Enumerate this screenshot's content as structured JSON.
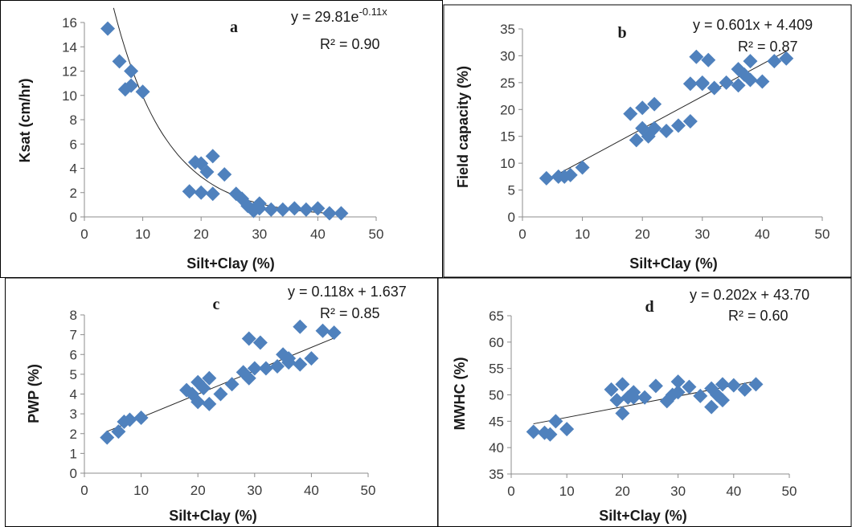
{
  "chart_data": [
    {
      "type": "scatter",
      "panel_label": "a",
      "xlabel": "Silt+Clay (%)",
      "ylabel": "Ksat (cm/hr)",
      "xlim": [
        0,
        50
      ],
      "ylim": [
        0,
        16
      ],
      "xticks": [
        "0",
        "10",
        "20",
        "30",
        "40",
        "50"
      ],
      "yticks": [
        "0",
        "2",
        "4",
        "6",
        "8",
        "10",
        "12",
        "14",
        "16"
      ],
      "equation": "y = 29.81e",
      "equation_exp": "-0.11x",
      "r2": "R² = 0.90",
      "trend": {
        "kind": "exponential",
        "a": 29.81,
        "b": -0.11,
        "x_from": 5,
        "x_to": 44
      },
      "marker_color": "#4f81bd",
      "series": [
        {
          "x": [
            4,
            6,
            7,
            8,
            8,
            10,
            18,
            19,
            20,
            20,
            21,
            22,
            22,
            24,
            26,
            27,
            28,
            29,
            30,
            30,
            32,
            34,
            36,
            38,
            40,
            42,
            44
          ],
          "y": [
            15.5,
            12.8,
            10.5,
            12,
            10.8,
            10.3,
            2.1,
            4.5,
            4.4,
            2,
            3.7,
            5,
            1.9,
            3.5,
            1.9,
            1.5,
            0.9,
            0.5,
            1.1,
            0.7,
            0.6,
            0.6,
            0.7,
            0.6,
            0.7,
            0.3,
            0.3
          ]
        }
      ]
    },
    {
      "type": "scatter",
      "panel_label": "b",
      "xlabel": "Silt+Clay (%)",
      "ylabel": "Field capacity (%)",
      "xlim": [
        0,
        50
      ],
      "ylim": [
        0,
        35
      ],
      "xticks": [
        "0",
        "10",
        "20",
        "30",
        "40",
        "50"
      ],
      "yticks": [
        "0",
        "5",
        "10",
        "15",
        "20",
        "25",
        "30",
        "35"
      ],
      "equation": "y = 0.601x + 4.409",
      "r2": "R² = 0.87",
      "trend": {
        "kind": "linear",
        "m": 0.601,
        "c": 4.409,
        "x_from": 4,
        "x_to": 44
      },
      "marker_color": "#4f81bd",
      "series": [
        {
          "x": [
            4,
            6,
            7,
            8,
            10,
            18,
            19,
            20,
            20,
            21,
            22,
            22,
            24,
            26,
            28,
            28,
            29,
            30,
            30,
            31,
            32,
            34,
            36,
            36,
            37,
            38,
            38,
            40,
            42,
            44
          ],
          "y": [
            7.2,
            7.5,
            7.5,
            7.8,
            9.2,
            19.2,
            14.3,
            20.3,
            16.5,
            15,
            21,
            16.5,
            16,
            17,
            17.8,
            24.8,
            29.8,
            24.8,
            25,
            29.2,
            24,
            25,
            24.5,
            27.5,
            26.5,
            29,
            25.5,
            25.2,
            29,
            29.5
          ]
        }
      ]
    },
    {
      "type": "scatter",
      "panel_label": "c",
      "xlabel": "Silt+Clay (%)",
      "ylabel": "PWP (%)",
      "xlim": [
        0,
        50
      ],
      "ylim": [
        0,
        8
      ],
      "xticks": [
        "0",
        "10",
        "20",
        "30",
        "40",
        "50"
      ],
      "yticks": [
        "0",
        "1",
        "2",
        "3",
        "4",
        "5",
        "6",
        "7",
        "8"
      ],
      "equation": "y = 0.118x + 1.637",
      "r2": "R² = 0.85",
      "trend": {
        "kind": "linear",
        "m": 0.118,
        "c": 1.637,
        "x_from": 4,
        "x_to": 44
      },
      "marker_color": "#4f81bd",
      "series": [
        {
          "x": [
            4,
            6,
            7,
            8,
            10,
            18,
            19,
            20,
            20,
            21,
            22,
            22,
            24,
            26,
            28,
            29,
            29,
            30,
            31,
            32,
            34,
            35,
            36,
            36,
            38,
            38,
            40,
            42,
            44
          ],
          "y": [
            1.8,
            2.1,
            2.6,
            2.7,
            2.8,
            4.2,
            4,
            4.6,
            3.6,
            4.3,
            4.8,
            3.5,
            4,
            4.5,
            5.1,
            4.8,
            6.8,
            5.3,
            6.6,
            5.3,
            5.4,
            6,
            5.6,
            5.8,
            7.4,
            5.5,
            5.8,
            7.2,
            7.1
          ]
        }
      ]
    },
    {
      "type": "scatter",
      "panel_label": "d",
      "xlabel": "Silt+Clay (%)",
      "ylabel": "MWHC (%)",
      "xlim": [
        0,
        50
      ],
      "ylim": [
        35,
        65
      ],
      "xticks": [
        "0",
        "10",
        "20",
        "30",
        "40",
        "50"
      ],
      "yticks": [
        "35",
        "40",
        "45",
        "50",
        "55",
        "60",
        "65"
      ],
      "equation": "y = 0.202x + 43.70",
      "r2": "R² = 0.60",
      "trend": {
        "kind": "linear",
        "m": 0.202,
        "c": 43.7,
        "x_from": 4,
        "x_to": 44
      },
      "marker_color": "#4f81bd",
      "series": [
        {
          "x": [
            4,
            6,
            7,
            8,
            10,
            18,
            19,
            20,
            20,
            21,
            22,
            22,
            24,
            26,
            28,
            29,
            30,
            30,
            32,
            34,
            36,
            36,
            37,
            38,
            38,
            40,
            42,
            44
          ],
          "y": [
            43,
            42.8,
            42.5,
            45,
            43.5,
            51,
            49,
            52,
            46.5,
            49.5,
            50.5,
            49.5,
            49.5,
            51.7,
            48.8,
            50,
            52.5,
            50.5,
            51.5,
            49.8,
            51.2,
            47.7,
            50,
            52,
            49,
            51.8,
            51,
            52
          ]
        }
      ]
    }
  ]
}
